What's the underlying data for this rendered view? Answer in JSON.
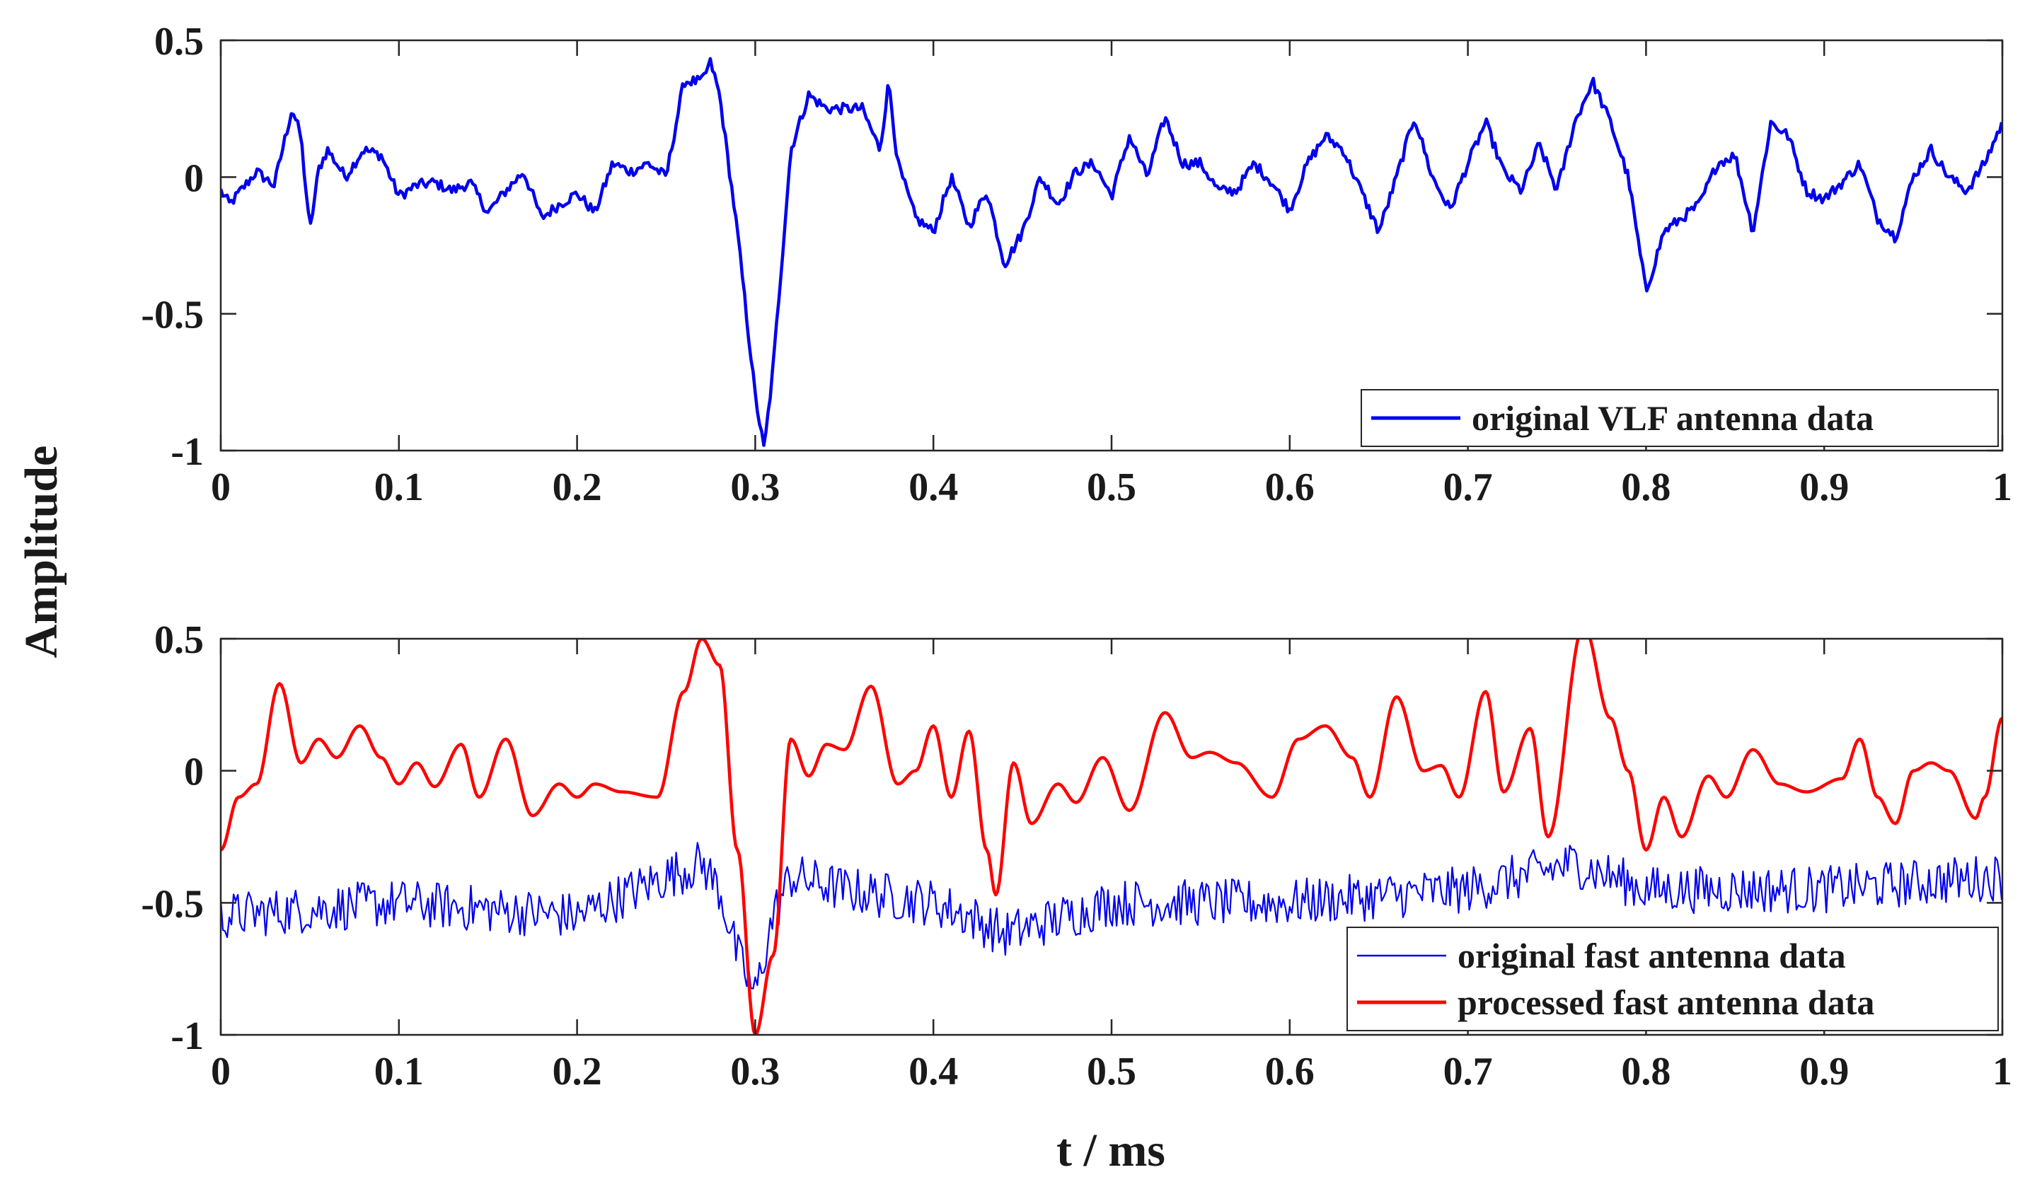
{
  "figure": {
    "ylabel": "Amplitude",
    "xlabel": "t / ms"
  },
  "chart_data": [
    {
      "type": "line",
      "panel": "top",
      "xlim": [
        0,
        1
      ],
      "ylim": [
        -1,
        0.5
      ],
      "xticks": [
        0,
        0.1,
        0.2,
        0.3,
        0.4,
        0.5,
        0.6,
        0.7,
        0.8,
        0.9,
        1
      ],
      "xtick_labels": [
        "0",
        "0.1",
        "0.2",
        "0.3",
        "0.4",
        "0.5",
        "0.6",
        "0.7",
        "0.8",
        "0.9",
        "1"
      ],
      "yticks": [
        -1,
        -0.5,
        0,
        0.5
      ],
      "ytick_labels": [
        "-1",
        "-0.5",
        "0",
        "0.5"
      ],
      "legend_position": "bottom-right",
      "series": [
        {
          "name": "original VLF antenna data",
          "color": "#0000ee",
          "noise": 0.02,
          "points": [
            [
              0,
              -0.05
            ],
            [
              0.005,
              -0.1
            ],
            [
              0.01,
              -0.06
            ],
            [
              0.02,
              0.02
            ],
            [
              0.03,
              -0.03
            ],
            [
              0.04,
              0.25
            ],
            [
              0.045,
              0.15
            ],
            [
              0.05,
              -0.2
            ],
            [
              0.055,
              0.03
            ],
            [
              0.06,
              0.1
            ],
            [
              0.07,
              0.0
            ],
            [
              0.08,
              0.1
            ],
            [
              0.09,
              0.08
            ],
            [
              0.1,
              -0.07
            ],
            [
              0.11,
              -0.03
            ],
            [
              0.12,
              -0.02
            ],
            [
              0.13,
              -0.05
            ],
            [
              0.14,
              -0.02
            ],
            [
              0.15,
              -0.13
            ],
            [
              0.16,
              -0.05
            ],
            [
              0.17,
              0.02
            ],
            [
              0.18,
              -0.15
            ],
            [
              0.19,
              -0.1
            ],
            [
              0.2,
              -0.06
            ],
            [
              0.21,
              -0.13
            ],
            [
              0.22,
              0.05
            ],
            [
              0.23,
              0.02
            ],
            [
              0.24,
              0.05
            ],
            [
              0.25,
              0.0
            ],
            [
              0.26,
              0.35
            ],
            [
              0.27,
              0.35
            ],
            [
              0.275,
              0.42
            ],
            [
              0.28,
              0.3
            ],
            [
              0.29,
              -0.2
            ],
            [
              0.3,
              -0.8
            ],
            [
              0.305,
              -1.0
            ],
            [
              0.31,
              -0.7
            ],
            [
              0.32,
              0.1
            ],
            [
              0.33,
              0.3
            ],
            [
              0.34,
              0.25
            ],
            [
              0.36,
              0.25
            ],
            [
              0.37,
              0.1
            ],
            [
              0.375,
              0.35
            ],
            [
              0.38,
              0.05
            ],
            [
              0.39,
              -0.15
            ],
            [
              0.4,
              -0.2
            ],
            [
              0.41,
              0.0
            ],
            [
              0.42,
              -0.18
            ],
            [
              0.43,
              -0.05
            ],
            [
              0.44,
              -0.32
            ],
            [
              0.45,
              -0.2
            ],
            [
              0.46,
              0.0
            ],
            [
              0.47,
              -0.1
            ],
            [
              0.48,
              0.02
            ],
            [
              0.49,
              0.05
            ],
            [
              0.5,
              -0.07
            ],
            [
              0.51,
              0.15
            ],
            [
              0.52,
              0.0
            ],
            [
              0.53,
              0.22
            ],
            [
              0.54,
              0.05
            ],
            [
              0.55,
              0.05
            ],
            [
              0.56,
              -0.05
            ],
            [
              0.57,
              -0.05
            ],
            [
              0.58,
              0.05
            ],
            [
              0.59,
              -0.02
            ],
            [
              0.6,
              -0.12
            ],
            [
              0.61,
              0.05
            ],
            [
              0.62,
              0.15
            ],
            [
              0.63,
              0.1
            ],
            [
              0.64,
              -0.05
            ],
            [
              0.65,
              -0.2
            ],
            [
              0.66,
              0.0
            ],
            [
              0.67,
              0.22
            ],
            [
              0.68,
              0.0
            ],
            [
              0.69,
              -0.12
            ],
            [
              0.7,
              0.05
            ],
            [
              0.71,
              0.2
            ],
            [
              0.72,
              0.02
            ],
            [
              0.73,
              -0.05
            ],
            [
              0.74,
              0.12
            ],
            [
              0.75,
              -0.05
            ],
            [
              0.76,
              0.2
            ],
            [
              0.77,
              0.35
            ],
            [
              0.78,
              0.2
            ],
            [
              0.79,
              0.0
            ],
            [
              0.8,
              -0.42
            ],
            [
              0.81,
              -0.2
            ],
            [
              0.82,
              -0.15
            ],
            [
              0.83,
              -0.1
            ],
            [
              0.84,
              0.05
            ],
            [
              0.85,
              0.08
            ],
            [
              0.86,
              -0.2
            ],
            [
              0.87,
              0.2
            ],
            [
              0.88,
              0.15
            ],
            [
              0.89,
              -0.05
            ],
            [
              0.9,
              -0.08
            ],
            [
              0.91,
              -0.02
            ],
            [
              0.92,
              0.05
            ],
            [
              0.93,
              -0.15
            ],
            [
              0.94,
              -0.22
            ],
            [
              0.95,
              0.0
            ],
            [
              0.96,
              0.1
            ],
            [
              0.97,
              0.0
            ],
            [
              0.98,
              -0.05
            ],
            [
              0.99,
              0.05
            ],
            [
              1.0,
              0.2
            ]
          ]
        }
      ]
    },
    {
      "type": "line",
      "panel": "bottom",
      "xlim": [
        0,
        1
      ],
      "ylim": [
        -1,
        0.5
      ],
      "xticks": [
        0,
        0.1,
        0.2,
        0.3,
        0.4,
        0.5,
        0.6,
        0.7,
        0.8,
        0.9,
        1
      ],
      "xtick_labels": [
        "0",
        "0.1",
        "0.2",
        "0.3",
        "0.4",
        "0.5",
        "0.6",
        "0.7",
        "0.8",
        "0.9",
        "1"
      ],
      "yticks": [
        -1,
        -0.5,
        0,
        0.5
      ],
      "ytick_labels": [
        "-1",
        "-0.5",
        "0",
        "0.5"
      ],
      "legend_position": "bottom-right",
      "series": [
        {
          "name": "original fast antenna data",
          "color": "#0000ee",
          "noise": 0.09,
          "points": [
            [
              0,
              -0.55
            ],
            [
              0.1,
              -0.5
            ],
            [
              0.2,
              -0.55
            ],
            [
              0.25,
              -0.4
            ],
            [
              0.27,
              -0.35
            ],
            [
              0.28,
              -0.45
            ],
            [
              0.29,
              -0.7
            ],
            [
              0.3,
              -0.85
            ],
            [
              0.31,
              -0.55
            ],
            [
              0.32,
              -0.4
            ],
            [
              0.35,
              -0.45
            ],
            [
              0.4,
              -0.5
            ],
            [
              0.42,
              -0.55
            ],
            [
              0.44,
              -0.62
            ],
            [
              0.5,
              -0.5
            ],
            [
              0.6,
              -0.5
            ],
            [
              0.7,
              -0.45
            ],
            [
              0.76,
              -0.35
            ],
            [
              0.8,
              -0.45
            ],
            [
              0.9,
              -0.45
            ],
            [
              1.0,
              -0.4
            ]
          ]
        },
        {
          "name": "processed fast antenna data",
          "color": "#ff0000",
          "noise": 0,
          "points": [
            [
              0,
              -0.3
            ],
            [
              0.01,
              -0.1
            ],
            [
              0.02,
              -0.05
            ],
            [
              0.033,
              0.33
            ],
            [
              0.045,
              0.03
            ],
            [
              0.055,
              0.12
            ],
            [
              0.065,
              0.05
            ],
            [
              0.078,
              0.17
            ],
            [
              0.09,
              0.05
            ],
            [
              0.1,
              -0.05
            ],
            [
              0.11,
              0.03
            ],
            [
              0.12,
              -0.06
            ],
            [
              0.135,
              0.1
            ],
            [
              0.145,
              -0.1
            ],
            [
              0.16,
              0.12
            ],
            [
              0.175,
              -0.17
            ],
            [
              0.19,
              -0.05
            ],
            [
              0.2,
              -0.1
            ],
            [
              0.21,
              -0.05
            ],
            [
              0.225,
              -0.08
            ],
            [
              0.245,
              -0.1
            ],
            [
              0.26,
              0.3
            ],
            [
              0.27,
              0.5
            ],
            [
              0.28,
              0.4
            ],
            [
              0.29,
              -0.3
            ],
            [
              0.3,
              -1.0
            ],
            [
              0.31,
              -0.7
            ],
            [
              0.32,
              0.12
            ],
            [
              0.33,
              -0.02
            ],
            [
              0.34,
              0.1
            ],
            [
              0.35,
              0.08
            ],
            [
              0.365,
              0.32
            ],
            [
              0.38,
              -0.05
            ],
            [
              0.39,
              0.0
            ],
            [
              0.4,
              0.17
            ],
            [
              0.41,
              -0.1
            ],
            [
              0.42,
              0.15
            ],
            [
              0.43,
              -0.3
            ],
            [
              0.435,
              -0.47
            ],
            [
              0.445,
              0.03
            ],
            [
              0.455,
              -0.2
            ],
            [
              0.47,
              -0.05
            ],
            [
              0.48,
              -0.12
            ],
            [
              0.495,
              0.05
            ],
            [
              0.51,
              -0.15
            ],
            [
              0.53,
              0.22
            ],
            [
              0.545,
              0.05
            ],
            [
              0.555,
              0.07
            ],
            [
              0.57,
              0.03
            ],
            [
              0.59,
              -0.1
            ],
            [
              0.605,
              0.12
            ],
            [
              0.62,
              0.17
            ],
            [
              0.635,
              0.05
            ],
            [
              0.645,
              -0.1
            ],
            [
              0.66,
              0.28
            ],
            [
              0.675,
              0.0
            ],
            [
              0.685,
              0.02
            ],
            [
              0.695,
              -0.1
            ],
            [
              0.71,
              0.3
            ],
            [
              0.72,
              -0.08
            ],
            [
              0.735,
              0.16
            ],
            [
              0.745,
              -0.25
            ],
            [
              0.765,
              0.55
            ],
            [
              0.78,
              0.2
            ],
            [
              0.79,
              0.0
            ],
            [
              0.8,
              -0.3
            ],
            [
              0.81,
              -0.1
            ],
            [
              0.82,
              -0.25
            ],
            [
              0.835,
              -0.02
            ],
            [
              0.845,
              -0.1
            ],
            [
              0.86,
              0.08
            ],
            [
              0.875,
              -0.05
            ],
            [
              0.89,
              -0.08
            ],
            [
              0.91,
              -0.03
            ],
            [
              0.92,
              0.12
            ],
            [
              0.93,
              -0.1
            ],
            [
              0.94,
              -0.2
            ],
            [
              0.95,
              0.0
            ],
            [
              0.96,
              0.03
            ],
            [
              0.97,
              0.0
            ],
            [
              0.985,
              -0.18
            ],
            [
              0.99,
              -0.1
            ],
            [
              1.0,
              0.2
            ]
          ]
        }
      ]
    }
  ]
}
